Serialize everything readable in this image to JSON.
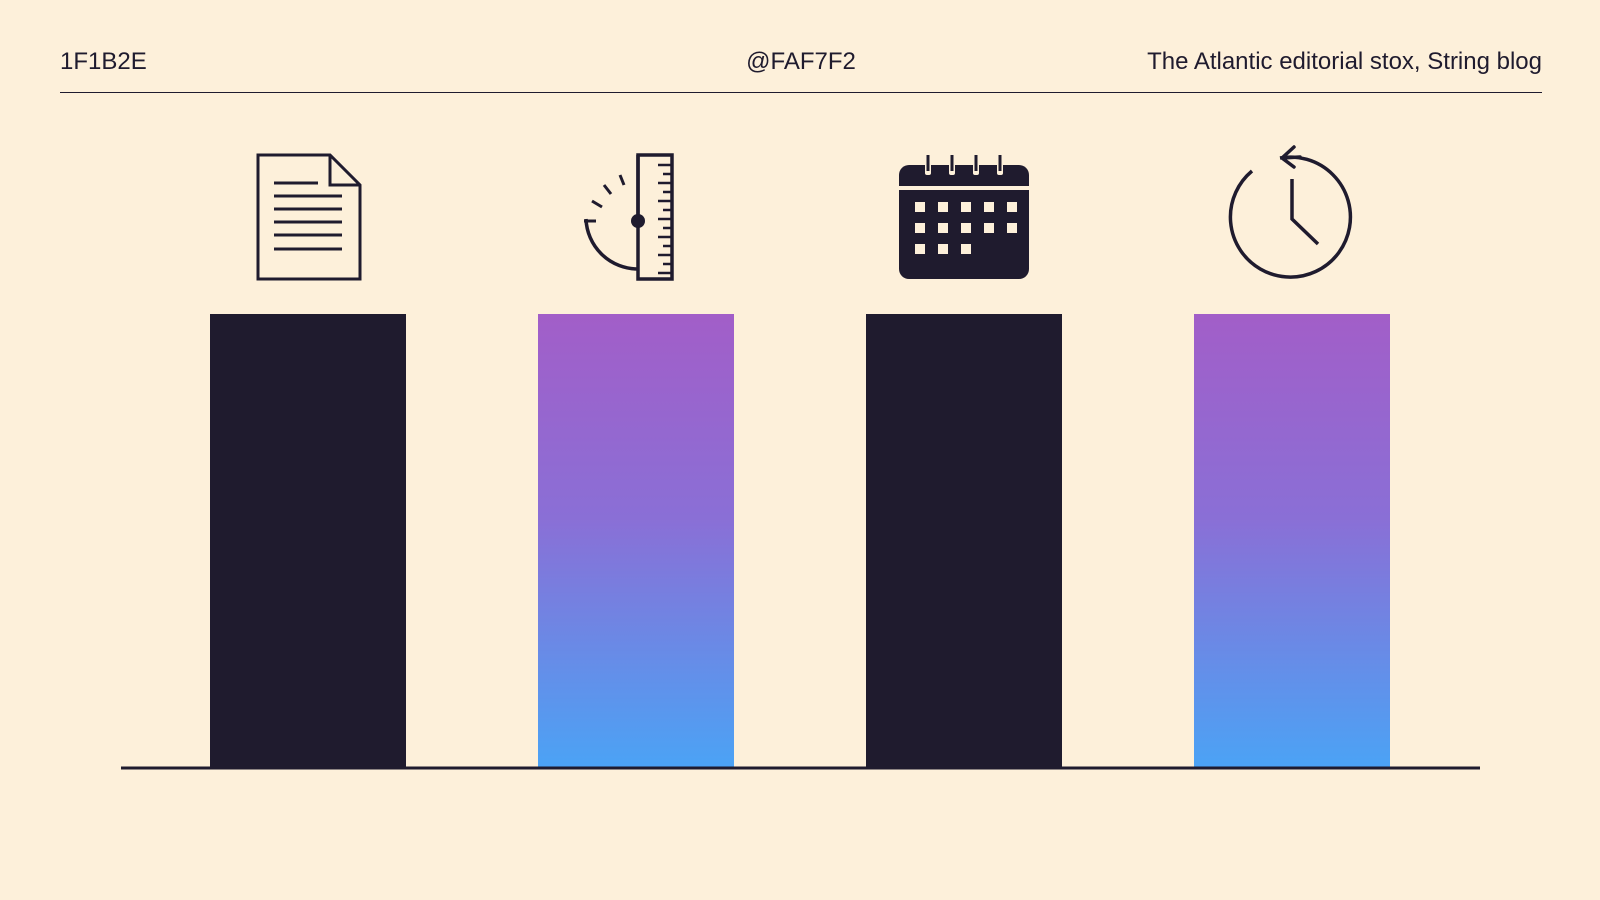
{
  "header": {
    "left_text": "1F1B2E",
    "center_text": "@FAF7F2",
    "right_text": "The Atlantic editorial stox, String blog"
  },
  "colors": {
    "background": "#FDF0DA",
    "ink": "#1F1B2E",
    "gradient_top": "#A25EC8",
    "gradient_mid": "#8A6FD6",
    "gradient_bottom": "#4BA3F5"
  },
  "chart_data": {
    "type": "bar",
    "title": "",
    "xlabel": "",
    "ylabel": "",
    "ylim": [
      0,
      1
    ],
    "grid": false,
    "categories": [
      "",
      "",
      "",
      ""
    ],
    "values": [
      1,
      1,
      1,
      1
    ],
    "bars": [
      {
        "icon": "document-icon",
        "fill": "solid"
      },
      {
        "icon": "ruler-gauge-icon",
        "fill": "gradient"
      },
      {
        "icon": "calendar-icon",
        "fill": "solid"
      },
      {
        "icon": "clock-history-icon",
        "fill": "gradient"
      }
    ]
  }
}
